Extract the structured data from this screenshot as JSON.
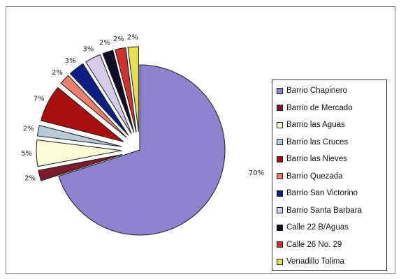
{
  "chart_data": {
    "type": "pie",
    "exploded": true,
    "title": "",
    "legend_position": "right",
    "categories": [
      "Barrio Chapinero",
      "Barrio de Mercado",
      "Barrio las Aguas",
      "Barrio las Cruces",
      "Barrio las Nieves",
      "Barrio Quezada",
      "Barrio San Victorino",
      "Barrio Santa Barbara",
      "Calle 22 B/Aguas",
      "Calle 26 No. 29",
      "Venadillo Tolima"
    ],
    "values": [
      70,
      2,
      5,
      2,
      7,
      2,
      3,
      3,
      2,
      2,
      2
    ],
    "data_labels": [
      "70%",
      "2%",
      "5%",
      "2%",
      "7%",
      "2%",
      "3%",
      "3%",
      "2%",
      "2%",
      "2%"
    ],
    "colors": [
      "#8e83cf",
      "#7c1a2e",
      "#fbfbd8",
      "#b9cbd8",
      "#a80f0f",
      "#e9806f",
      "#0c1e86",
      "#d6cce8",
      "#0e0f27",
      "#cf3330",
      "#e4e055"
    ]
  }
}
